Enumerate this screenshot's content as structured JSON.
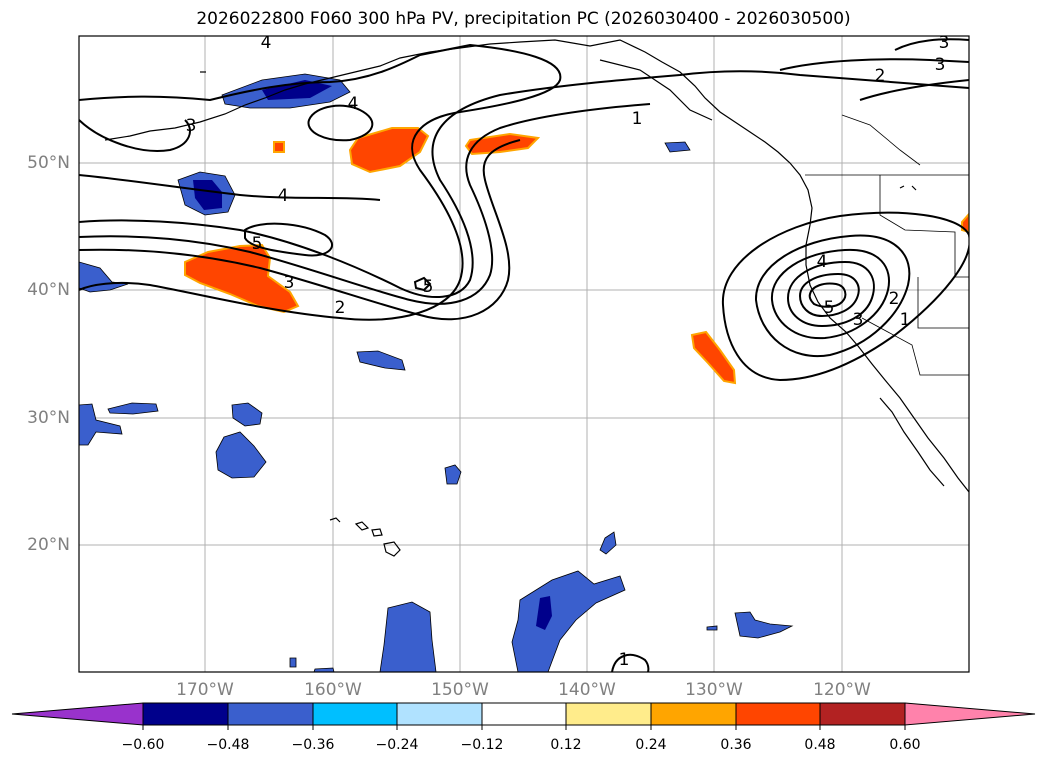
{
  "title": "2026022800 F060 300 hPa PV, precipitation PC (2026030400 - 2026030500)",
  "lat_labels": [
    "50°N",
    "40°N",
    "30°N",
    "20°N"
  ],
  "lon_labels": [
    "170°W",
    "160°W",
    "150°W",
    "140°W",
    "130°W",
    "120°W"
  ],
  "colorbar": {
    "ticks": [
      "−0.60",
      "−0.48",
      "−0.36",
      "−0.24",
      "−0.12",
      "0.12",
      "0.24",
      "0.36",
      "0.48",
      "0.60"
    ],
    "colors": [
      "#9932cc",
      "#00008b",
      "#3a5fcd",
      "#00bfff",
      "#b0e2ff",
      "#ffffff",
      "#ffec8b",
      "#ffa500",
      "#ff4500",
      "#b22222",
      "#ff82ab"
    ]
  },
  "contour_labels": [
    "4",
    "3",
    "2",
    "1",
    "4",
    "3",
    "4",
    "5",
    "3",
    "2",
    "5",
    "4",
    "5",
    "3",
    "2",
    "1",
    "3",
    "1"
  ],
  "colors": {
    "blue_fill": "#3a5fcd",
    "dark_blue": "#00008b",
    "cyan_edge": "#00bfff",
    "orange_fill": "#ff4500",
    "grid": "#b0b0b0"
  }
}
